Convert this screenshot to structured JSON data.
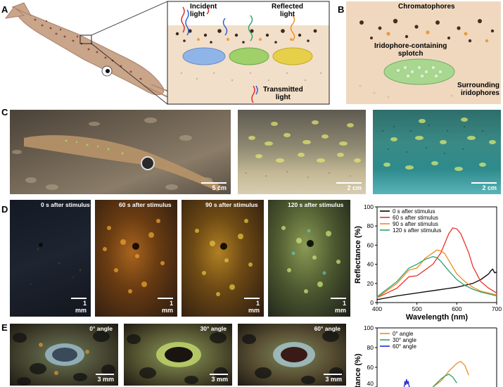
{
  "panel_labels": [
    "A",
    "B",
    "C",
    "D",
    "E"
  ],
  "panel_a": {
    "incident": "Incident\nlight",
    "reflected": "Reflected\nlight",
    "transmitted": "Transmitted\nlight"
  },
  "panel_b": {
    "chromatophores": "Chromatophores",
    "splotch": "Iridophore-containing\nsplotch",
    "surrounding": "Surrounding\niridophores"
  },
  "panel_c": {
    "scales": [
      "5 cm",
      "2 cm",
      "2 cm"
    ]
  },
  "panel_d": {
    "frames": [
      {
        "label": "0 s after stimulus",
        "scale": "1 mm"
      },
      {
        "label": "60 s after stimulus",
        "scale": "1 mm"
      },
      {
        "label": "90 s after stimulus",
        "scale": "1 mm"
      },
      {
        "label": "120 s after stimulus",
        "scale": "1 mm"
      }
    ]
  },
  "panel_e": {
    "frames": [
      {
        "label": "0° angle",
        "scale": "3 mm"
      },
      {
        "label": "30° angle",
        "scale": "3 mm"
      },
      {
        "label": "60° angle",
        "scale": "3 mm"
      }
    ]
  },
  "chart_data": [
    {
      "type": "line",
      "xlabel": "Wavelength (nm)",
      "ylabel": "Reflectance (%)",
      "xlim": [
        400,
        700
      ],
      "ylim": [
        0,
        100
      ],
      "xticks": [
        "400",
        "500",
        "600",
        "700"
      ],
      "yticks": [
        "0",
        "20",
        "40",
        "60",
        "80",
        "100"
      ],
      "legend_position": "top-left",
      "series": [
        {
          "name": "0 s after stimulus",
          "color": "#000000",
          "x": [
            400,
            450,
            500,
            550,
            600,
            620,
            640,
            660,
            670,
            680,
            685,
            690,
            695,
            700
          ],
          "y": [
            3,
            7,
            10,
            13,
            16,
            18,
            20,
            24,
            27,
            30,
            33,
            35,
            31,
            32
          ]
        },
        {
          "name": "60 s after stimulus",
          "color": "#e8322a",
          "x": [
            400,
            450,
            480,
            500,
            520,
            540,
            560,
            570,
            580,
            590,
            600,
            610,
            620,
            630,
            640,
            660,
            680,
            700
          ],
          "y": [
            5,
            15,
            27,
            28,
            34,
            40,
            52,
            62,
            72,
            78,
            77,
            72,
            62,
            52,
            38,
            22,
            15,
            10
          ]
        },
        {
          "name": "90 s after stimulus",
          "color": "#f08c1e",
          "x": [
            400,
            450,
            480,
            500,
            520,
            540,
            550,
            560,
            570,
            580,
            600,
            620,
            640,
            660,
            680,
            700
          ],
          "y": [
            5,
            20,
            34,
            36,
            46,
            52,
            55,
            54,
            51,
            44,
            30,
            22,
            16,
            12,
            10,
            8
          ]
        },
        {
          "name": "120 s after stimulus",
          "color": "#2aa36a",
          "x": [
            400,
            450,
            480,
            500,
            520,
            540,
            550,
            560,
            580,
            600,
            620,
            640,
            660,
            680,
            700
          ],
          "y": [
            6,
            22,
            36,
            40,
            45,
            48,
            47,
            43,
            33,
            24,
            18,
            14,
            11,
            9,
            7
          ]
        }
      ]
    },
    {
      "type": "line",
      "ylabel": "ctance (%)",
      "ylim": [
        40,
        100
      ],
      "yticks": [
        "40",
        "60",
        "80",
        "100"
      ],
      "legend_position": "top-left",
      "series": [
        {
          "name": "0° angle",
          "color": "#f08c1e",
          "x": [
            540,
            560,
            580,
            600,
            610,
            620,
            630
          ],
          "y": [
            40,
            46,
            56,
            64,
            66,
            62,
            52
          ]
        },
        {
          "name": "30° angle",
          "color": "#2aa36a",
          "x": [
            540,
            550,
            560,
            570,
            580,
            590,
            600
          ],
          "y": [
            40,
            44,
            48,
            51,
            53,
            50,
            44
          ]
        },
        {
          "name": "60° angle",
          "color": "#2a2ad0",
          "x": [
            468,
            470,
            472,
            474,
            476,
            478,
            480,
            482
          ],
          "y": [
            40,
            46,
            42,
            48,
            43,
            46,
            41,
            40
          ]
        }
      ]
    }
  ]
}
